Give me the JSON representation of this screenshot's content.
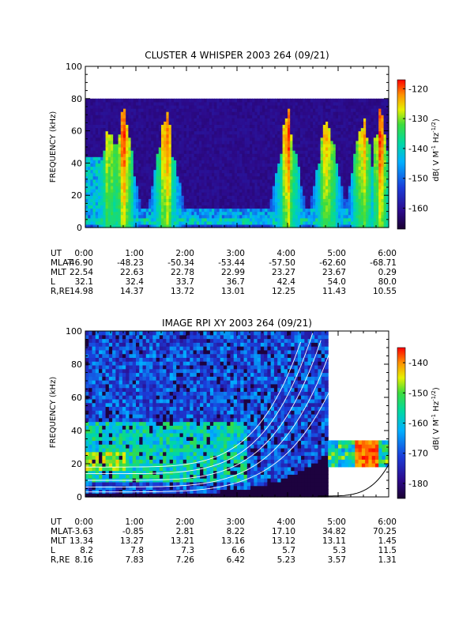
{
  "chart_data": [
    {
      "type": "heatmap",
      "title": "CLUSTER 4 WHISPER 2003 264 (09/21)",
      "ylabel": "FREQUENCY (kHz)",
      "ylim": [
        0,
        100
      ],
      "yticks": [
        "0",
        "20",
        "40",
        "60",
        "80",
        "100"
      ],
      "data_top_khz": 80,
      "colorbar": {
        "label": "dB( V M⁻¹ Hz⁻¹ᐟ²)",
        "label_parts": [
          "dB( V M",
          "-1",
          " Hz",
          "-1/2",
          ")"
        ],
        "range": [
          -167,
          -117
        ],
        "ticks": [
          "-120",
          "-130",
          "-140",
          "-150",
          "-160"
        ]
      },
      "ephemeris_labels": [
        "UT",
        "MLAT",
        "MLT",
        "L",
        "R,RE"
      ],
      "ephemeris": [
        [
          "0:00",
          "1:00",
          "2:00",
          "3:00",
          "4:00",
          "5:00",
          "6:00"
        ],
        [
          "-46.90",
          "-48.23",
          "-50.34",
          "-53.44",
          "-57.50",
          "-62.60",
          "-68.71"
        ],
        [
          "22.54",
          "22.63",
          "22.78",
          "22.99",
          "23.27",
          "23.67",
          "0.29"
        ],
        [
          "32.1",
          "32.4",
          "33.7",
          "36.7",
          "42.4",
          "54.0",
          "80.0"
        ],
        [
          "14.98",
          "14.37",
          "13.72",
          "13.01",
          "12.25",
          "11.43",
          "10.55"
        ]
      ],
      "intensity_bursts_hours": [
        0.5,
        0.75,
        1.6,
        4.0,
        4.8,
        5.5,
        5.85
      ],
      "colors": [
        "#ffffff",
        "#000000"
      ]
    },
    {
      "type": "heatmap",
      "title": "IMAGE RPI XY 2003 264 (09/21)",
      "ylabel": "FREQUENCY (kHz)",
      "ylim": [
        0,
        100
      ],
      "yticks": [
        "0",
        "20",
        "40",
        "60",
        "80",
        "100"
      ],
      "colorbar": {
        "label": "dB( V M⁻¹ Hz⁻¹ᐟ²)",
        "label_parts": [
          "dB( V M",
          "-1",
          " Hz",
          "-1/2",
          ")"
        ],
        "range": [
          -185,
          -135
        ],
        "ticks": [
          "-140",
          "-150",
          "-160",
          "-170",
          "-180"
        ]
      },
      "ephemeris_labels": [
        "UT",
        "MLAT",
        "MLT",
        "L",
        "R,RE"
      ],
      "ephemeris": [
        [
          "0:00",
          "1:00",
          "2:00",
          "3:00",
          "4:00",
          "5:00",
          "6:00"
        ],
        [
          "-3.63",
          "-0.85",
          "2.81",
          "8.22",
          "17.10",
          "34.82",
          "70.25"
        ],
        [
          "13.34",
          "13.27",
          "13.21",
          "13.16",
          "13.12",
          "13.11",
          "1.45"
        ],
        [
          "8.2",
          "7.8",
          "7.3",
          "6.6",
          "5.7",
          "5.3",
          "11.5"
        ],
        [
          "8.16",
          "7.83",
          "7.26",
          "6.42",
          "5.23",
          "3.57",
          "1.31"
        ]
      ],
      "data_end_hour_full": 4.82,
      "band_after_gap_khz": [
        18,
        33
      ]
    }
  ]
}
